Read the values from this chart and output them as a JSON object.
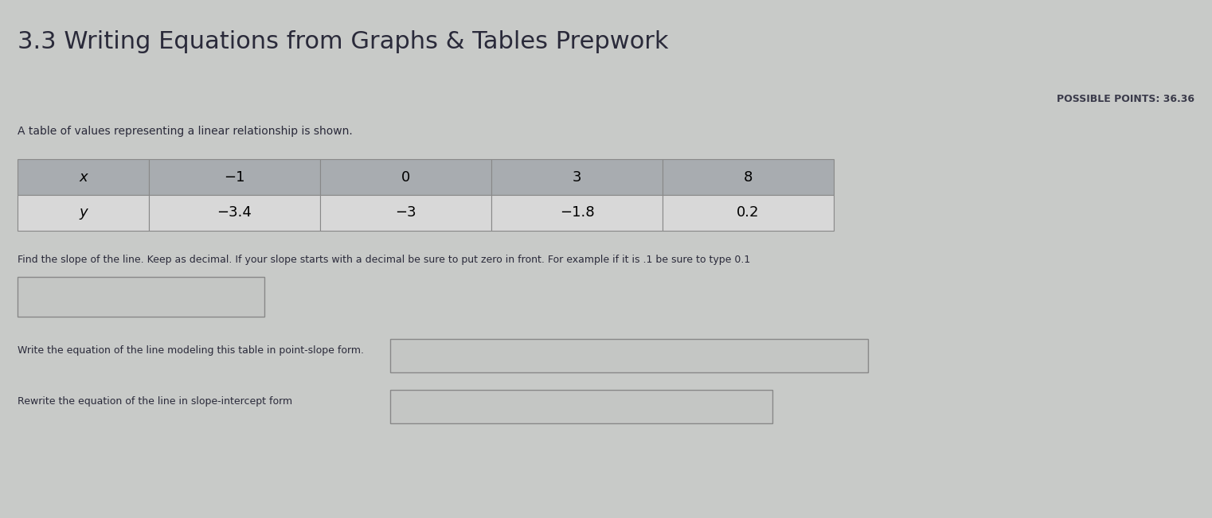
{
  "title": "3.3 Writing Equations from Graphs & Tables Prepwork",
  "possible_points": "POSSIBLE POINTS: 36.36",
  "table_intro": "A table of values representing a linear relationship is shown.",
  "table_headers": [
    "x",
    "−1",
    "0",
    "3",
    "8"
  ],
  "table_row2": [
    "y",
    "−3.4",
    "−3",
    "−1.8",
    "0.2"
  ],
  "find_slope_text": "Find the slope of the line. Keep as decimal. If your slope starts with a decimal be sure to put zero in front. For example if it is .1 be sure to type 0.1",
  "point_slope_label": "Write the equation of the line modeling this table in point-slope form.",
  "slope_intercept_label": "Rewrite the equation of the line in slope-intercept form",
  "bg_color": "#c8cac8",
  "table_header_bg": "#a8acb0",
  "table_cell_bg": "#d8d8d8",
  "table_border_color": "#888888",
  "input_box_bg": "#c8cac8",
  "input_box_border": "#888888",
  "title_color": "#2a2a3a",
  "text_color": "#2a2a3a",
  "pp_color": "#3a3a4a",
  "title_fontsize": 22,
  "body_fontsize": 10,
  "table_fontsize": 13
}
